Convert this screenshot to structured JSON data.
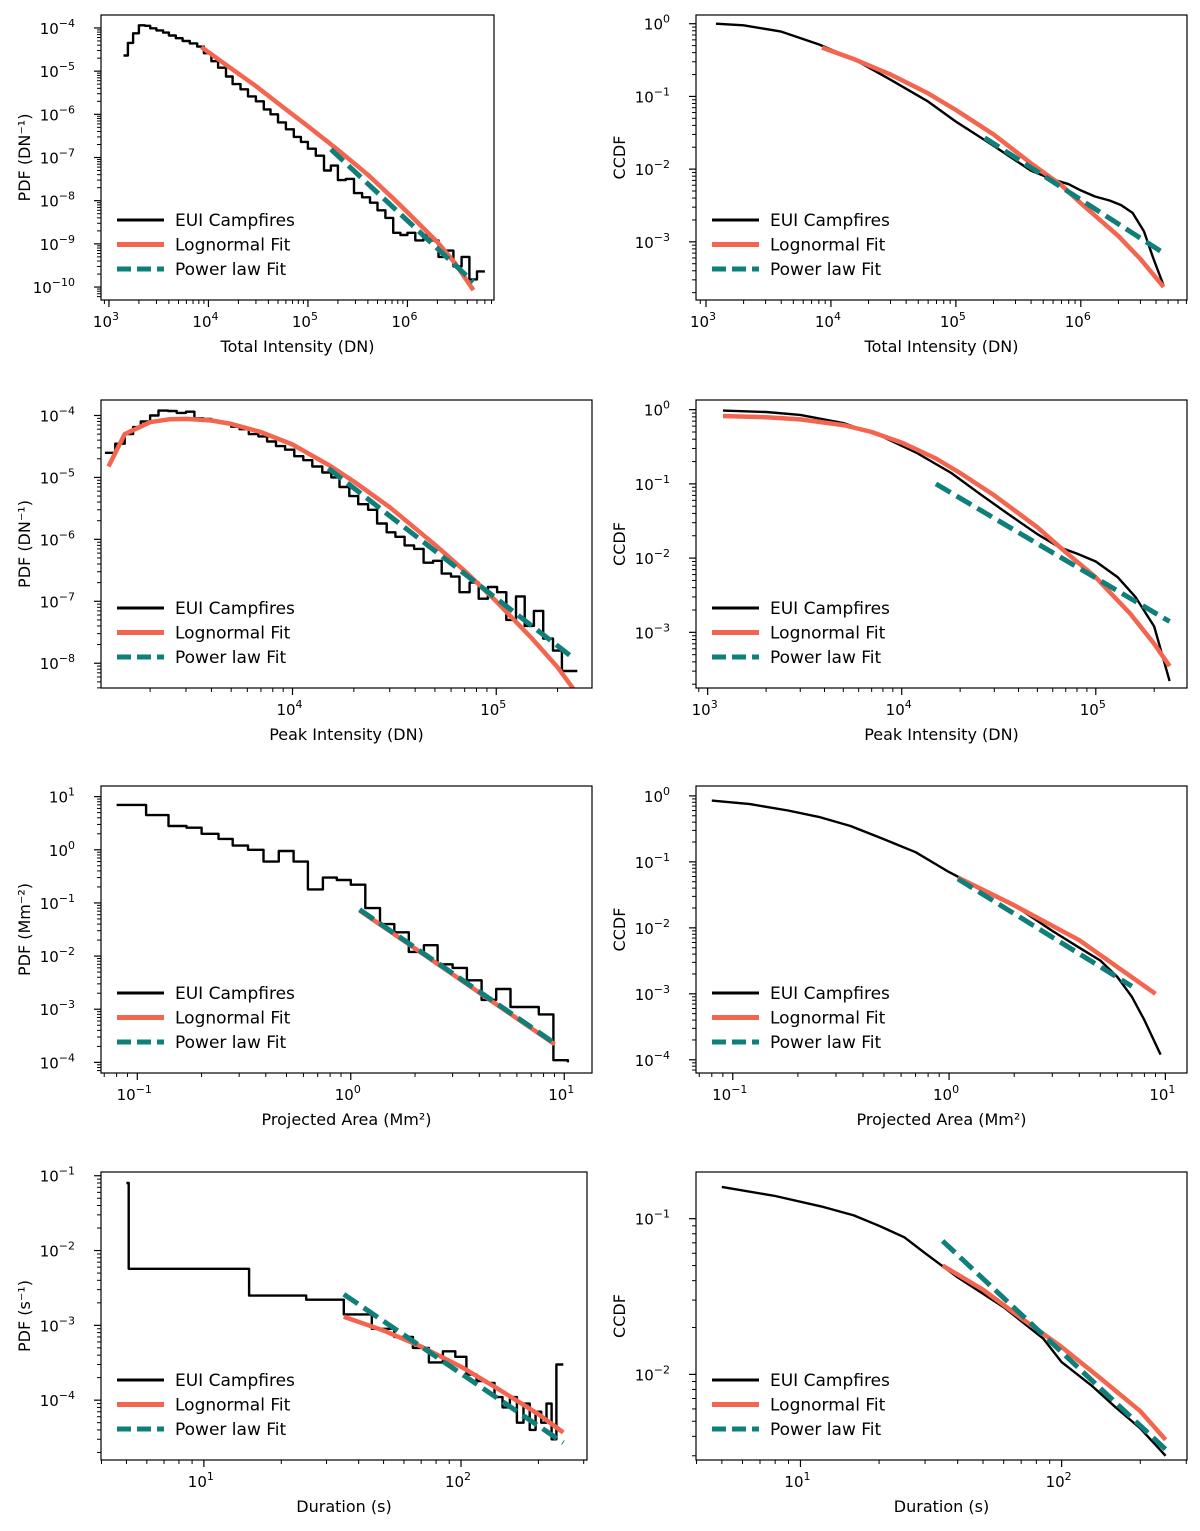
{
  "colors": {
    "campfires": "#000000",
    "lognormal": "#f4654f",
    "powerlaw": "#0f7f7a"
  },
  "legend": {
    "campfires": "EUI Campfires",
    "lognormal": "Lognormal Fit",
    "powerlaw": "Power law Fit"
  },
  "chart_data": [
    {
      "id": "total-intensity-pdf",
      "type": "line",
      "xlabel": "Total Intensity (DN)",
      "ylabel": "PDF (DN⁻¹)",
      "xlog": [
        2.92,
        6.87
      ],
      "ylog": [
        -10.3,
        -3.7
      ],
      "xticks": [
        3,
        4,
        5,
        6
      ],
      "yticks": [
        -10,
        -9,
        -8,
        -7,
        -6,
        -5,
        -4
      ],
      "series": [
        {
          "name": "EUI Campfires",
          "style": "step",
          "x": [
            1400.0,
            1550.0,
            1750.0,
            2000.0,
            2300.0,
            2600.0,
            3000.0,
            3500.0,
            4000.0,
            4700.0,
            5500.0,
            6500.0,
            7700.0,
            9000.0,
            10700.0,
            12500.0,
            15000.0,
            17500.0,
            21000.0,
            25000.0,
            30000.0,
            36000.0,
            42000.0,
            50000.0,
            60000.0,
            72000.0,
            85000.0,
            100000.0,
            120000.0,
            145000.0,
            170000.0,
            200000.0,
            240000.0,
            290000.0,
            350000.0,
            420000.0,
            500000.0,
            600000.0,
            720000.0,
            850000.0,
            1000000.0,
            1200000.0,
            1450000.0,
            1700000.0,
            2050000.0,
            2450000.0,
            2900000.0,
            3500000.0,
            4200000.0,
            5000000.0,
            6000000.0
          ],
          "y": [
            2.3e-05,
            4.5e-05,
            7.5e-05,
            0.000115,
            0.000112,
            9.8e-05,
            8.8e-05,
            7.8e-05,
            6.7e-05,
            5.8e-05,
            5e-05,
            4.4e-05,
            3.7e-05,
            2.6e-05,
            1.7e-05,
            1.2e-05,
            7.5e-06,
            5e-06,
            3.8e-06,
            2.6e-06,
            2e-06,
            1.3e-06,
            1e-06,
            6.5e-07,
            4.5e-07,
            3e-07,
            2.3e-07,
            1.6e-07,
            1.1e-07,
            5e-08,
            6.5e-08,
            3e-08,
            3.2e-08,
            1.5e-08,
            1.2e-08,
            9e-09,
            6e-09,
            4e-09,
            1.8e-09,
            1.6e-09,
            1.8e-09,
            1.2e-09,
            1.6e-09,
            1.2e-09,
            5e-10,
            7e-10,
            3e-10,
            5e-10,
            1.5e-10,
            2.3e-10,
            2.3e-10
          ]
        },
        {
          "name": "Lognormal Fit",
          "style": "line",
          "x": [
            8500.0,
            15000.0,
            30000.0,
            60000.0,
            100000.0,
            200000.0,
            400000.0,
            700000.0,
            1000000.0,
            2000000.0,
            3000000.0,
            4600000.0
          ],
          "y": [
            3.6e-05,
            1.4e-05,
            4.5e-06,
            1.3e-06,
            5.3e-07,
            1.5e-07,
            4e-08,
            1.2e-08,
            5.4e-09,
            1.1e-09,
            3.6e-10,
            8.5e-11
          ]
        },
        {
          "name": "Power law Fit",
          "style": "dash",
          "x": [
            170000.0,
            4600000.0
          ],
          "y": [
            1.55e-07,
            1.3e-10
          ]
        }
      ]
    },
    {
      "id": "total-intensity-ccdf",
      "type": "line",
      "xlabel": "Total Intensity (DN)",
      "ylabel": "CCDF",
      "xlog": [
        2.92,
        6.85
      ],
      "ylog": [
        -3.8,
        0.12
      ],
      "xticks": [
        3,
        4,
        5,
        6
      ],
      "yticks": [
        -3,
        -2,
        -1,
        0
      ],
      "series": [
        {
          "name": "EUI Campfires",
          "style": "line",
          "x": [
            1200.0,
            2000.0,
            4000.0,
            8000.0,
            15000.0,
            30000.0,
            60000.0,
            100000.0,
            200000.0,
            400000.0,
            600000.0,
            800000.0,
            1000000.0,
            1300000.0,
            1700000.0,
            2100000.0,
            2600000.0,
            3200000.0,
            3800000.0,
            4600000.0
          ],
          "y": [
            1.0,
            0.95,
            0.78,
            0.52,
            0.33,
            0.17,
            0.085,
            0.045,
            0.021,
            0.0095,
            0.0072,
            0.0062,
            0.0051,
            0.0042,
            0.0037,
            0.0032,
            0.0025,
            0.0014,
            0.0006,
            0.00025
          ]
        },
        {
          "name": "Lognormal Fit",
          "style": "line",
          "x": [
            8500.0,
            15000.0,
            30000.0,
            60000.0,
            100000.0,
            200000.0,
            400000.0,
            700000.0,
            1000000.0,
            2000000.0,
            3000000.0,
            4600000.0
          ],
          "y": [
            0.47,
            0.33,
            0.2,
            0.11,
            0.065,
            0.03,
            0.012,
            0.006,
            0.0034,
            0.0012,
            0.00058,
            0.00024
          ]
        },
        {
          "name": "Power law Fit",
          "style": "dash",
          "x": [
            170000.0,
            4600000.0
          ],
          "y": [
            0.027,
            0.0007
          ]
        }
      ]
    },
    {
      "id": "peak-intensity-pdf",
      "type": "line",
      "xlabel": "Peak Intensity (DN)",
      "ylabel": "PDF (DN⁻¹)",
      "xlog": [
        3.06,
        5.47
      ],
      "ylog": [
        -8.4,
        -3.75
      ],
      "xticks": [
        4,
        5
      ],
      "yticks": [
        -8,
        -7,
        -6,
        -5,
        -4
      ],
      "series": [
        {
          "name": "EUI Campfires",
          "style": "step",
          "x": [
            1200.0,
            1350.0,
            1500.0,
            1650.0,
            1800.0,
            2000.0,
            2200.0,
            2450.0,
            2700.0,
            3000.0,
            3300.0,
            3650.0,
            4000.0,
            4500.0,
            5000.0,
            5500.0,
            6100.0,
            6800.0,
            7500.0,
            8300.0,
            9200.0,
            10200.0,
            11300.0,
            12500.0,
            14000.0,
            15500.0,
            17000.0,
            19000.0,
            21000.0,
            23500.0,
            26000.0,
            29000.0,
            32000.0,
            35500.0,
            39500.0,
            44000.0,
            49000.0,
            54000.0,
            60000.0,
            66000.0,
            74000.0,
            82000.0,
            91000.0,
            101000.0,
            112000.0,
            125000.0,
            138000.0,
            153000.0,
            170000.0,
            190000.0,
            210000.0,
            250000.0
          ],
          "y": [
            2.5e-05,
            3.5e-05,
            5e-05,
            6.5e-05,
            8e-05,
            0.0001,
            0.00012,
            0.000118,
            0.00011,
            0.000115,
            9e-05,
            8.8e-05,
            8e-05,
            7.5e-05,
            6.6e-05,
            6e-05,
            5e-05,
            4.6e-05,
            3.8e-05,
            3.2e-05,
            2.8e-05,
            2.2e-05,
            1.9e-05,
            1.5e-05,
            1.2e-05,
            1e-05,
            7e-06,
            5e-06,
            3.7e-06,
            3e-06,
            1.8e-06,
            1.3e-06,
            1.1e-06,
            8e-07,
            7e-07,
            4.2e-07,
            4.5e-07,
            2.8e-07,
            2.5e-07,
            1.4e-07,
            2e-07,
            1.1e-07,
            1.7e-07,
            1.4e-07,
            5e-08,
            1.2e-07,
            4e-08,
            7e-08,
            2.5e-08,
            1.6e-08,
            7.5e-09,
            7.5e-09
          ]
        },
        {
          "name": "Lognormal Fit",
          "style": "line",
          "x": [
            1250.0,
            1500.0,
            2000.0,
            2500.0,
            3000.0,
            4000.0,
            5000.0,
            7000.0,
            10000.0,
            15000.0,
            20000.0,
            30000.0,
            50000.0,
            70000.0,
            100000.0,
            150000.0,
            200000.0,
            240000.0
          ],
          "y": [
            1.5e-05,
            5e-05,
            7.8e-05,
            8.7e-05,
            8.8e-05,
            8.3e-05,
            7.3e-05,
            5.4e-05,
            3.4e-05,
            1.6e-05,
            8.6e-06,
            3.3e-06,
            8.2e-07,
            3.1e-07,
            1e-07,
            2.5e-08,
            8.6e-09,
            3.8e-09
          ]
        },
        {
          "name": "Power law Fit",
          "style": "dash",
          "x": [
            15000.0,
            240000.0
          ],
          "y": [
            1.4e-05,
            1.2e-08
          ]
        }
      ]
    },
    {
      "id": "peak-intensity-ccdf",
      "type": "line",
      "xlabel": "Peak Intensity (DN)",
      "ylabel": "CCDF",
      "xlog": [
        2.94,
        5.47
      ],
      "ylog": [
        -3.75,
        0.13
      ],
      "xticks": [
        3,
        4,
        5
      ],
      "yticks": [
        -3,
        -2,
        -1,
        0
      ],
      "series": [
        {
          "name": "EUI Campfires",
          "style": "line",
          "x": [
            1200.0,
            2000.0,
            3000.0,
            5000.0,
            8000.0,
            12000.0,
            18000.0,
            25000.0,
            35000.0,
            50000.0,
            65000.0,
            80000.0,
            100000.0,
            130000.0,
            160000.0,
            200000.0,
            240000.0
          ],
          "y": [
            0.97,
            0.93,
            0.85,
            0.66,
            0.43,
            0.26,
            0.14,
            0.075,
            0.04,
            0.021,
            0.014,
            0.0115,
            0.009,
            0.0055,
            0.003,
            0.0012,
            0.00022
          ]
        },
        {
          "name": "Lognormal Fit",
          "style": "line",
          "x": [
            1200.0,
            2000.0,
            3000.0,
            5000.0,
            7000.0,
            10000.0,
            15000.0,
            20000.0,
            30000.0,
            50000.0,
            70000.0,
            100000.0,
            150000.0,
            200000.0,
            240000.0
          ],
          "y": [
            0.82,
            0.79,
            0.74,
            0.62,
            0.5,
            0.36,
            0.22,
            0.14,
            0.07,
            0.026,
            0.012,
            0.0055,
            0.0018,
            0.0007,
            0.00035
          ]
        },
        {
          "name": "Power law Fit",
          "style": "dash",
          "x": [
            15000.0,
            240000.0
          ],
          "y": [
            0.1,
            0.0014
          ]
        }
      ]
    },
    {
      "id": "projected-area-pdf",
      "type": "line",
      "xlabel": "Projected Area (Mm²)",
      "ylabel": "PDF (Mm⁻²)",
      "xlog": [
        -1.17,
        1.13
      ],
      "ylog": [
        -4.2,
        1.2
      ],
      "xticks": [
        -1,
        0,
        1
      ],
      "yticks": [
        -4,
        -3,
        -2,
        -1,
        0,
        1
      ],
      "series": [
        {
          "name": "EUI Campfires",
          "style": "step",
          "x": [
            0.08,
            0.11,
            0.14,
            0.17,
            0.2,
            0.24,
            0.28,
            0.33,
            0.39,
            0.46,
            0.54,
            0.63,
            0.74,
            0.86,
            1.0,
            1.17,
            1.37,
            1.6,
            1.87,
            2.2,
            2.55,
            3.0,
            3.5,
            4.1,
            4.8,
            5.6,
            6.5,
            7.6,
            8.9,
            10.4
          ],
          "y": [
            7,
            4.5,
            2.8,
            2.6,
            2.0,
            1.6,
            1.2,
            1.0,
            0.6,
            0.95,
            0.6,
            0.18,
            0.3,
            0.27,
            0.22,
            0.08,
            0.04,
            0.028,
            0.012,
            0.016,
            0.007,
            0.006,
            0.0035,
            0.0015,
            0.0024,
            0.0011,
            0.0011,
            0.0008,
            0.00011,
            0.0001
          ]
        },
        {
          "name": "Lognormal Fit",
          "style": "line",
          "x": [
            1.1,
            9.0
          ],
          "y": [
            0.072,
            0.00022
          ]
        },
        {
          "name": "Power law Fit",
          "style": "dash",
          "x": [
            1.1,
            9.0
          ],
          "y": [
            0.075,
            0.00023
          ]
        }
      ]
    },
    {
      "id": "projected-area-ccdf",
      "type": "line",
      "xlabel": "Projected Area (Mm²)",
      "ylabel": "CCDF",
      "xlog": [
        -1.17,
        1.1
      ],
      "ylog": [
        -4.2,
        0.15
      ],
      "xticks": [
        -1,
        0,
        1
      ],
      "yticks": [
        -4,
        -3,
        -2,
        -1,
        0
      ],
      "series": [
        {
          "name": "EUI Campfires",
          "style": "line",
          "x": [
            0.08,
            0.12,
            0.18,
            0.25,
            0.35,
            0.5,
            0.7,
            1.0,
            1.5,
            2.0,
            3.0,
            4.0,
            5.0,
            6.0,
            7.0,
            8.0,
            9.5
          ],
          "y": [
            0.85,
            0.75,
            0.6,
            0.48,
            0.35,
            0.22,
            0.14,
            0.07,
            0.035,
            0.022,
            0.009,
            0.005,
            0.0032,
            0.0018,
            0.0009,
            0.0004,
            0.00012
          ]
        },
        {
          "name": "Lognormal Fit",
          "style": "line",
          "x": [
            1.1,
            2.0,
            4.0,
            9.0
          ],
          "y": [
            0.058,
            0.022,
            0.0065,
            0.001
          ]
        },
        {
          "name": "Power law Fit",
          "style": "dash",
          "x": [
            1.1,
            7.0
          ],
          "y": [
            0.055,
            0.0013
          ]
        }
      ]
    },
    {
      "id": "duration-pdf",
      "type": "line",
      "xlabel": "Duration (s)",
      "ylabel": "PDF (s⁻¹)",
      "xlog": [
        0.6,
        2.49
      ],
      "ylog": [
        -4.8,
        -0.95
      ],
      "xticks": [
        1,
        2
      ],
      "yticks": [
        -4,
        -3,
        -2,
        -1
      ],
      "series": [
        {
          "name": "EUI Campfires",
          "style": "step",
          "x": [
            5,
            5.1,
            15,
            25,
            35,
            45,
            55,
            65,
            75,
            85,
            95,
            105,
            115,
            125,
            135,
            145,
            155,
            165,
            175,
            185,
            195,
            205,
            215,
            225,
            235,
            245,
            250
          ],
          "y": [
            0.08,
            0.0057,
            0.0025,
            0.0022,
            0.0014,
            0.0009,
            0.0007,
            0.0005,
            0.00032,
            0.00045,
            0.00038,
            0.00022,
            0.00018,
            0.00017,
            0.00011,
            8e-05,
            0.00011,
            5e-05,
            9e-05,
            4e-05,
            7e-05,
            5e-05,
            9e-05,
            3e-05,
            0.0003,
            0.0003,
            0.0003
          ]
        },
        {
          "name": "Lognormal Fit",
          "style": "line",
          "x": [
            35,
            50,
            70,
            100,
            140,
            200,
            250
          ],
          "y": [
            0.0013,
            0.00085,
            0.00052,
            0.00028,
            0.00014,
            6.5e-05,
            3.7e-05
          ]
        },
        {
          "name": "Power law Fit",
          "style": "dash",
          "x": [
            35,
            250
          ],
          "y": [
            0.0026,
            2.7e-05
          ]
        }
      ]
    },
    {
      "id": "duration-ccdf",
      "type": "line",
      "xlabel": "Duration (s)",
      "ylabel": "CCDF",
      "xlog": [
        0.6,
        2.48
      ],
      "ylog": [
        -2.55,
        -0.7
      ],
      "xticks": [
        1,
        2
      ],
      "yticks": [
        -2,
        -1
      ],
      "series": [
        {
          "name": "EUI Campfires",
          "style": "line",
          "x": [
            5,
            8,
            12,
            16,
            20,
            25,
            30,
            40,
            50,
            60,
            70,
            85,
            100,
            130,
            160,
            200,
            230,
            250
          ],
          "y": [
            0.16,
            0.14,
            0.12,
            0.105,
            0.09,
            0.076,
            0.06,
            0.042,
            0.033,
            0.027,
            0.022,
            0.017,
            0.012,
            0.0085,
            0.0062,
            0.0045,
            0.0035,
            0.003
          ]
        },
        {
          "name": "Lognormal Fit",
          "style": "line",
          "x": [
            35,
            50,
            70,
            100,
            140,
            200,
            250
          ],
          "y": [
            0.05,
            0.035,
            0.023,
            0.015,
            0.0095,
            0.0058,
            0.0038
          ]
        },
        {
          "name": "Power law Fit",
          "style": "dash",
          "x": [
            35,
            250
          ],
          "y": [
            0.072,
            0.0033
          ]
        }
      ]
    }
  ]
}
